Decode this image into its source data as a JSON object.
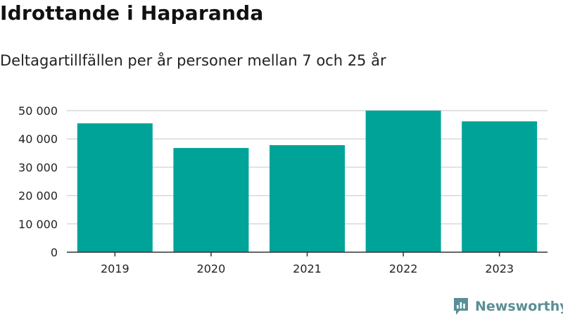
{
  "header": {
    "title": "Idrottande i Haparanda",
    "subtitle": "Deltagartillfällen per år personer mellan 7 och 25 år"
  },
  "brand": {
    "name": "Newsworthy",
    "icon": "newsworthy-logo-icon",
    "color": "#5a8f96"
  },
  "colors": {
    "bar": "#00a398",
    "grid": "#d9d9d9",
    "axis": "#333333"
  },
  "chart_data": {
    "type": "bar",
    "title": "Idrottande i Haparanda",
    "subtitle": "Deltagartillfällen per år personer mellan 7 och 25 år",
    "categories": [
      "2019",
      "2020",
      "2021",
      "2022",
      "2023"
    ],
    "values": [
      45500,
      36800,
      37800,
      50000,
      46200
    ],
    "xlabel": "",
    "ylabel": "",
    "ylim": [
      0,
      50000
    ],
    "yticks": [
      0,
      10000,
      20000,
      30000,
      40000,
      50000
    ],
    "ytick_labels": [
      "0",
      "10 000",
      "20 000",
      "30 000",
      "40 000",
      "50 000"
    ],
    "grid": true,
    "legend": "none"
  }
}
